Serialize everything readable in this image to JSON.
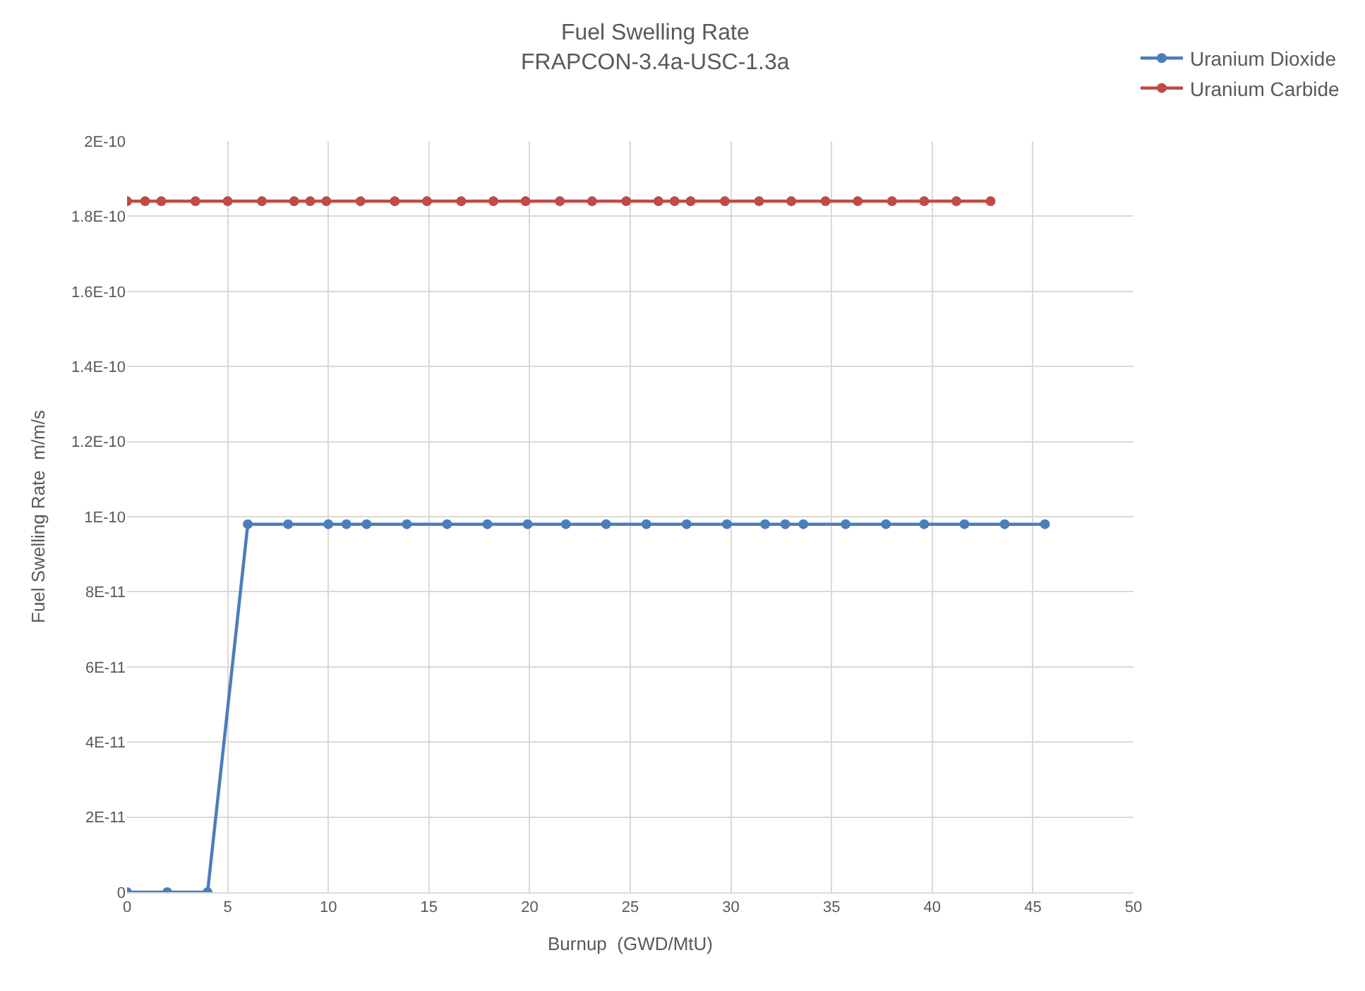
{
  "chart_data": {
    "type": "line",
    "title": "Fuel Swelling Rate",
    "subtitle": "FRAPCON-3.4a-USC-1.3a",
    "xlabel": "Burnup  (GWD/MtU)",
    "ylabel": "Fuel Swelling Rate  m/m/s",
    "series": [
      {
        "name": "Uranium Dioxide",
        "color": "#4a7ebb",
        "x": [
          0,
          2,
          4,
          6,
          8,
          10,
          10.9,
          11.9,
          13.9,
          15.9,
          17.9,
          19.9,
          21.8,
          23.8,
          25.8,
          27.8,
          29.8,
          31.7,
          32.7,
          33.6,
          35.7,
          37.7,
          39.6,
          41.6,
          43.6,
          45.6
        ],
        "values": [
          0,
          0,
          0,
          9.8e-11,
          9.8e-11,
          9.8e-11,
          9.8e-11,
          9.8e-11,
          9.8e-11,
          9.8e-11,
          9.8e-11,
          9.8e-11,
          9.8e-11,
          9.8e-11,
          9.8e-11,
          9.8e-11,
          9.8e-11,
          9.8e-11,
          9.8e-11,
          9.8e-11,
          9.8e-11,
          9.8e-11,
          9.8e-11,
          9.8e-11,
          9.8e-11,
          9.8e-11
        ]
      },
      {
        "name": "Uranium Carbide",
        "color": "#be4b48",
        "x": [
          0,
          0.9,
          1.7,
          3.4,
          5.0,
          6.7,
          8.3,
          9.1,
          9.9,
          11.6,
          13.3,
          14.9,
          16.6,
          18.2,
          19.8,
          21.5,
          23.1,
          24.8,
          26.4,
          27.2,
          28.0,
          29.7,
          31.4,
          33.0,
          34.7,
          36.3,
          38.0,
          39.6,
          41.2,
          42.9
        ],
        "values": [
          1.84e-10,
          1.84e-10,
          1.84e-10,
          1.84e-10,
          1.84e-10,
          1.84e-10,
          1.84e-10,
          1.84e-10,
          1.84e-10,
          1.84e-10,
          1.84e-10,
          1.84e-10,
          1.84e-10,
          1.84e-10,
          1.84e-10,
          1.84e-10,
          1.84e-10,
          1.84e-10,
          1.84e-10,
          1.84e-10,
          1.84e-10,
          1.84e-10,
          1.84e-10,
          1.84e-10,
          1.84e-10,
          1.84e-10,
          1.84e-10,
          1.84e-10,
          1.84e-10,
          1.84e-10
        ]
      }
    ],
    "xlim": [
      0,
      50
    ],
    "xticks": [
      0,
      5,
      10,
      15,
      20,
      25,
      30,
      35,
      40,
      45,
      50
    ],
    "ylim": [
      0,
      2e-10
    ],
    "yticks": [
      0,
      {
        "value": 2e-11,
        "label": "2E-11"
      },
      {
        "value": 4e-11,
        "label": "4E-11"
      },
      {
        "value": 6e-11,
        "label": "6E-11"
      },
      {
        "value": 8e-11,
        "label": "8E-11"
      },
      {
        "value": 1e-10,
        "label": "1E-10"
      },
      {
        "value": 1.2e-10,
        "label": "1.2E-10"
      },
      {
        "value": 1.4e-10,
        "label": "1.4E-10"
      },
      {
        "value": 1.6e-10,
        "label": "1.6E-10"
      },
      {
        "value": 1.8e-10,
        "label": "1.8E-10"
      },
      {
        "value": 2e-10,
        "label": "2E-10"
      }
    ],
    "grid": true,
    "legend": "top right",
    "marker": "circle",
    "line_style": "solid"
  }
}
